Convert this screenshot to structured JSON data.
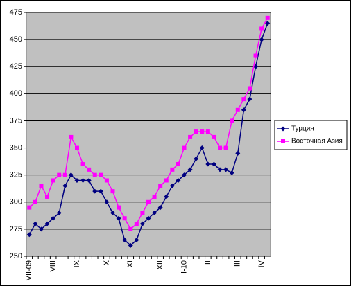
{
  "chart_data": {
    "type": "line",
    "categories": [
      "VII-09",
      null,
      null,
      null,
      "VIII",
      null,
      null,
      null,
      "IX",
      null,
      null,
      null,
      null,
      "X",
      null,
      null,
      null,
      "XI",
      null,
      null,
      null,
      null,
      "XII",
      null,
      null,
      null,
      "I-10",
      null,
      null,
      null,
      "II",
      null,
      null,
      null,
      null,
      "III",
      null,
      null,
      null,
      "IV",
      null
    ],
    "series": [
      {
        "name": "Турция",
        "color": "#000080",
        "marker": "diamond",
        "values": [
          270,
          280,
          275,
          280,
          285,
          290,
          315,
          325,
          320,
          320,
          320,
          310,
          310,
          300,
          290,
          285,
          265,
          260,
          265,
          280,
          285,
          290,
          295,
          305,
          315,
          320,
          325,
          330,
          340,
          350,
          335,
          335,
          330,
          330,
          327,
          345,
          385,
          395,
          425,
          450,
          465
        ]
      },
      {
        "name": "Восточная Азия",
        "color": "#ff00ff",
        "marker": "square",
        "values": [
          295,
          300,
          315,
          305,
          320,
          325,
          325,
          360,
          350,
          335,
          330,
          325,
          325,
          320,
          310,
          295,
          285,
          275,
          280,
          290,
          300,
          305,
          315,
          320,
          330,
          335,
          350,
          360,
          365,
          365,
          365,
          360,
          350,
          350,
          375,
          385,
          395,
          405,
          435,
          460,
          470
        ]
      }
    ],
    "ylim": [
      250,
      475
    ],
    "yticks": [
      250,
      275,
      300,
      325,
      350,
      375,
      400,
      425,
      450,
      475
    ],
    "grid": true,
    "legend": "right"
  }
}
